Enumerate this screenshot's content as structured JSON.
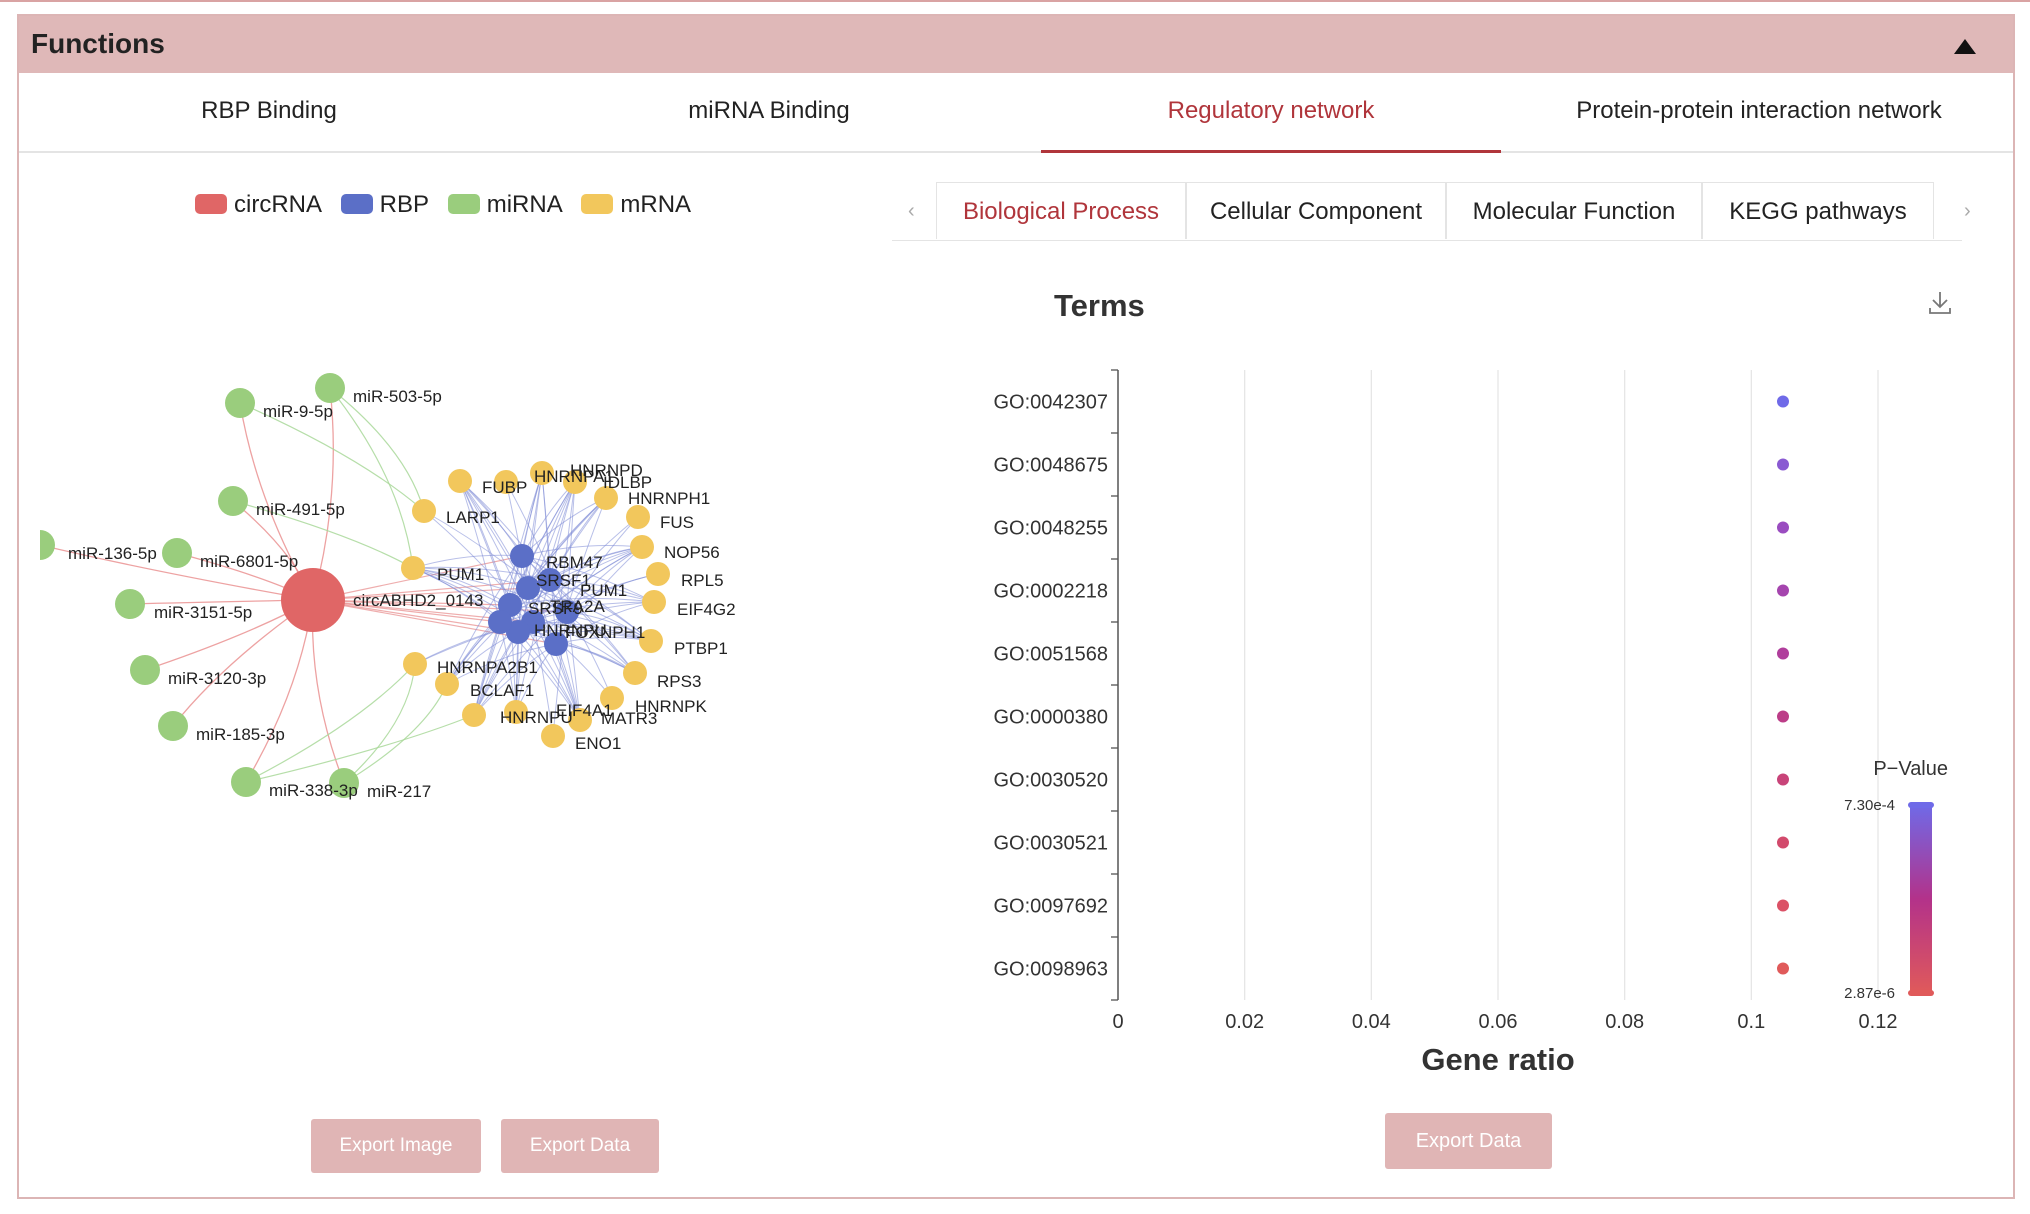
{
  "panel": {
    "title": "Functions"
  },
  "tabs": [
    {
      "label": "RBP Binding"
    },
    {
      "label": "miRNA Binding"
    },
    {
      "label": "Regulatory network"
    },
    {
      "label": "Protein-protein interaction network"
    }
  ],
  "network": {
    "legend": [
      {
        "label": "circRNA",
        "color": "#e06666"
      },
      {
        "label": "RBP",
        "color": "#5b6fc7"
      },
      {
        "label": "miRNA",
        "color": "#9acd7d"
      },
      {
        "label": "mRNA",
        "color": "#f2c75c"
      }
    ],
    "center": "circABHD2_0143",
    "mirnas": [
      "miR-503-5p",
      "miR-9-5p",
      "miR-491-5p",
      "miR-136-5p",
      "miR-6801-5p",
      "miR-3151-5p",
      "miR-3120-3p",
      "miR-185-3p",
      "miR-338-3p",
      "miR-217"
    ],
    "rbps": [
      "RBM47",
      "SRSF1",
      "TRA2A",
      "SRSF9",
      "HNRNPU",
      "PUM1",
      "FOXNPH1"
    ],
    "mrnas": [
      "FUBP",
      "HNRNPA1",
      "HNRNPD",
      "IDLBP",
      "HNRNPH1",
      "FUS",
      "NOP56",
      "RPL5",
      "EIF4G2",
      "PTBP1",
      "RPS3",
      "HNRNPK",
      "MATR3",
      "ENO1",
      "EIF4A1",
      "HNRNPU",
      "BCLAF1",
      "HNRNPA2B1",
      "PUM1",
      "LARP1"
    ],
    "export_image": "Export Image",
    "export_data": "Export Data"
  },
  "enrichment": {
    "subtabs": [
      {
        "label": "Biological Process"
      },
      {
        "label": "Cellular Component"
      },
      {
        "label": "Molecular Function"
      },
      {
        "label": "KEGG pathways"
      }
    ],
    "prev_arrow": "‹",
    "next_arrow": "›",
    "export_data": "Export Data"
  },
  "chart_data": {
    "type": "scatter",
    "title": "Terms",
    "xlabel": "Gene ratio",
    "ylabel": "",
    "categories": [
      "GO:0042307",
      "GO:0048675",
      "GO:0048255",
      "GO:0002218",
      "GO:0051568",
      "GO:0000380",
      "GO:0030520",
      "GO:0030521",
      "GO:0097692",
      "GO:0098963"
    ],
    "x": [
      0.105,
      0.105,
      0.105,
      0.105,
      0.105,
      0.105,
      0.105,
      0.105,
      0.105,
      0.105
    ],
    "xlim": [
      0,
      0.12
    ],
    "xticks": [
      "0",
      "0.02",
      "0.04",
      "0.06",
      "0.08",
      "0.1",
      "0.12"
    ],
    "xtick_values": [
      0,
      0.02,
      0.04,
      0.06,
      0.08,
      0.1,
      0.12
    ],
    "grid": true,
    "colorbar": {
      "title": "P−Value",
      "max_label": "7.30e-4",
      "min_label": "2.87e-6",
      "colors": [
        "#6f6ae8",
        "#b3328a",
        "#e05a5a"
      ]
    },
    "point_colors": [
      "#6f6ae8",
      "#8a5ad2",
      "#9a4cc0",
      "#a545ae",
      "#b03e9c",
      "#bc3d88",
      "#c84479",
      "#d24a6c",
      "#db5166",
      "#e05a5a"
    ]
  }
}
